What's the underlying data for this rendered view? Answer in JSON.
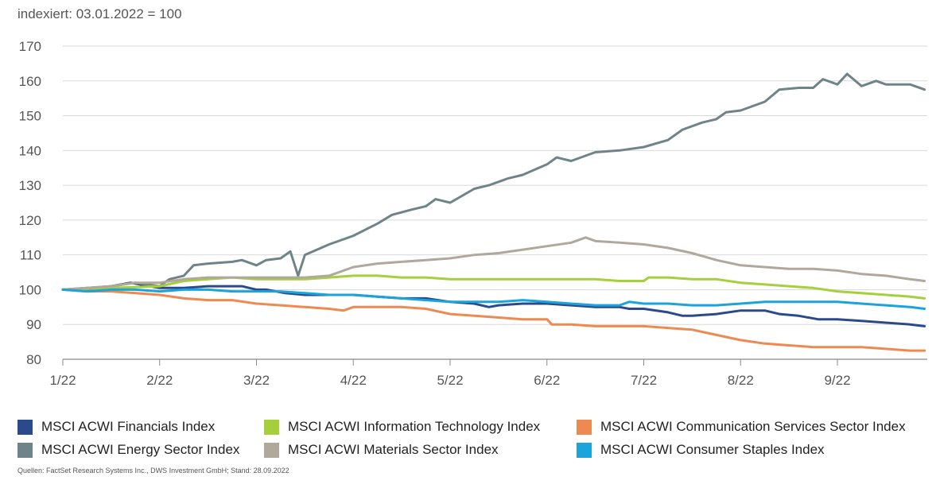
{
  "subtitle": "indexiert: 03.01.2022 = 100",
  "source": "Quellen: FactSet Research Systems Inc., DWS Investment GmbH; Stand: 28.09.2022",
  "chart_data": {
    "type": "line",
    "title": "",
    "xlabel": "",
    "ylabel": "",
    "ylim": [
      80,
      170
    ],
    "yticks": [
      80,
      90,
      100,
      110,
      120,
      130,
      140,
      150,
      160,
      170
    ],
    "xticks": [
      "1/22",
      "2/22",
      "3/22",
      "4/22",
      "5/22",
      "6/22",
      "7/22",
      "8/22",
      "9/22"
    ],
    "xrange": [
      0,
      8.9
    ],
    "grid": true,
    "legend_position": "bottom",
    "series": [
      {
        "name": "MSCI ACWI Financials Index",
        "color": "#2b4a8b",
        "points": [
          [
            0,
            100
          ],
          [
            0.3,
            100
          ],
          [
            0.5,
            101
          ],
          [
            0.7,
            102
          ],
          [
            0.9,
            101
          ],
          [
            1,
            100.5
          ],
          [
            1.25,
            100.5
          ],
          [
            1.5,
            101
          ],
          [
            1.75,
            101
          ],
          [
            1.85,
            101
          ],
          [
            2,
            100
          ],
          [
            2.1,
            100
          ],
          [
            2.3,
            99
          ],
          [
            2.5,
            98.5
          ],
          [
            2.75,
            98.5
          ],
          [
            3,
            98.5
          ],
          [
            3.25,
            98
          ],
          [
            3.5,
            97.5
          ],
          [
            3.75,
            97.5
          ],
          [
            4,
            96.5
          ],
          [
            4.25,
            96
          ],
          [
            4.4,
            95
          ],
          [
            4.5,
            95.5
          ],
          [
            4.75,
            96
          ],
          [
            5,
            96
          ],
          [
            5.25,
            95.5
          ],
          [
            5.5,
            95
          ],
          [
            5.75,
            95
          ],
          [
            5.85,
            94.5
          ],
          [
            6,
            94.5
          ],
          [
            6.25,
            93.5
          ],
          [
            6.4,
            92.5
          ],
          [
            6.5,
            92.5
          ],
          [
            6.75,
            93
          ],
          [
            7,
            94
          ],
          [
            7.25,
            94
          ],
          [
            7.4,
            93
          ],
          [
            7.6,
            92.5
          ],
          [
            7.8,
            91.5
          ],
          [
            8,
            91.5
          ],
          [
            8.25,
            91
          ],
          [
            8.5,
            90.5
          ],
          [
            8.75,
            90
          ],
          [
            8.9,
            89.5
          ]
        ]
      },
      {
        "name": "MSCI ACWI Energy Sector Index",
        "color": "#6f8489",
        "points": [
          [
            0,
            100
          ],
          [
            0.25,
            100.5
          ],
          [
            0.5,
            101
          ],
          [
            0.75,
            102
          ],
          [
            1,
            101
          ],
          [
            1.1,
            103
          ],
          [
            1.25,
            104
          ],
          [
            1.35,
            107
          ],
          [
            1.5,
            107.5
          ],
          [
            1.75,
            108
          ],
          [
            1.85,
            108.5
          ],
          [
            2,
            107
          ],
          [
            2.1,
            108.5
          ],
          [
            2.25,
            109
          ],
          [
            2.35,
            111
          ],
          [
            2.43,
            104
          ],
          [
            2.5,
            110
          ],
          [
            2.75,
            113
          ],
          [
            3,
            115.5
          ],
          [
            3.25,
            119
          ],
          [
            3.4,
            121.5
          ],
          [
            3.6,
            123
          ],
          [
            3.75,
            124
          ],
          [
            3.85,
            126
          ],
          [
            4,
            125
          ],
          [
            4.25,
            129
          ],
          [
            4.4,
            130
          ],
          [
            4.6,
            132
          ],
          [
            4.75,
            133
          ],
          [
            5,
            136
          ],
          [
            5.1,
            138
          ],
          [
            5.25,
            137
          ],
          [
            5.5,
            139.5
          ],
          [
            5.75,
            140
          ],
          [
            6,
            141
          ],
          [
            6.25,
            143
          ],
          [
            6.4,
            146
          ],
          [
            6.6,
            148
          ],
          [
            6.75,
            149
          ],
          [
            6.85,
            151
          ],
          [
            7,
            151.5
          ],
          [
            7.25,
            154
          ],
          [
            7.4,
            157.5
          ],
          [
            7.6,
            158
          ],
          [
            7.75,
            158
          ],
          [
            7.85,
            160.5
          ],
          [
            8,
            159
          ],
          [
            8.1,
            162
          ],
          [
            8.25,
            158.5
          ],
          [
            8.4,
            160
          ],
          [
            8.5,
            159
          ],
          [
            8.75,
            159
          ],
          [
            8.9,
            157.5
          ]
        ]
      },
      {
        "name": "MSCI ACWI Information Technology Index",
        "color": "#a5cf3b",
        "points": [
          [
            0,
            100
          ],
          [
            0.5,
            100.5
          ],
          [
            1,
            101
          ],
          [
            1.25,
            102.5
          ],
          [
            1.5,
            103
          ],
          [
            1.75,
            103.5
          ],
          [
            2,
            103
          ],
          [
            2.25,
            103
          ],
          [
            2.5,
            103
          ],
          [
            2.75,
            103.5
          ],
          [
            3,
            104
          ],
          [
            3.25,
            104
          ],
          [
            3.5,
            103.5
          ],
          [
            3.75,
            103.5
          ],
          [
            4,
            103
          ],
          [
            4.25,
            103
          ],
          [
            4.5,
            103
          ],
          [
            4.75,
            103
          ],
          [
            5,
            103
          ],
          [
            5.25,
            103
          ],
          [
            5.5,
            103
          ],
          [
            5.75,
            102.5
          ],
          [
            6,
            102.5
          ],
          [
            6.05,
            103.5
          ],
          [
            6.25,
            103.5
          ],
          [
            6.5,
            103
          ],
          [
            6.75,
            103
          ],
          [
            7,
            102
          ],
          [
            7.25,
            101.5
          ],
          [
            7.5,
            101
          ],
          [
            7.75,
            100.5
          ],
          [
            8,
            99.5
          ],
          [
            8.25,
            99
          ],
          [
            8.5,
            98.5
          ],
          [
            8.75,
            98
          ],
          [
            8.9,
            97.5
          ]
        ]
      },
      {
        "name": "MSCI ACWI Materials Sector Index",
        "color": "#b1a89c",
        "points": [
          [
            0,
            100
          ],
          [
            0.25,
            100.5
          ],
          [
            0.5,
            101
          ],
          [
            0.75,
            102
          ],
          [
            1,
            102
          ],
          [
            1.25,
            103
          ],
          [
            1.5,
            103.5
          ],
          [
            1.75,
            103.5
          ],
          [
            2,
            103.5
          ],
          [
            2.25,
            103.5
          ],
          [
            2.5,
            103.5
          ],
          [
            2.75,
            104
          ],
          [
            3,
            106.5
          ],
          [
            3.25,
            107.5
          ],
          [
            3.5,
            108
          ],
          [
            3.75,
            108.5
          ],
          [
            4,
            109
          ],
          [
            4.25,
            110
          ],
          [
            4.5,
            110.5
          ],
          [
            4.75,
            111.5
          ],
          [
            5,
            112.5
          ],
          [
            5.25,
            113.5
          ],
          [
            5.4,
            115
          ],
          [
            5.5,
            114
          ],
          [
            5.75,
            113.5
          ],
          [
            6,
            113
          ],
          [
            6.25,
            112
          ],
          [
            6.5,
            110.5
          ],
          [
            6.75,
            108.5
          ],
          [
            7,
            107
          ],
          [
            7.25,
            106.5
          ],
          [
            7.5,
            106
          ],
          [
            7.75,
            106
          ],
          [
            8,
            105.5
          ],
          [
            8.25,
            104.5
          ],
          [
            8.5,
            104
          ],
          [
            8.75,
            103
          ],
          [
            8.9,
            102.5
          ]
        ]
      },
      {
        "name": "MSCI ACWI Communication Services Sector Index",
        "color": "#ec8a52",
        "points": [
          [
            0,
            100
          ],
          [
            0.25,
            99.5
          ],
          [
            0.5,
            99.5
          ],
          [
            0.75,
            99
          ],
          [
            1,
            98.5
          ],
          [
            1.25,
            97.5
          ],
          [
            1.5,
            97
          ],
          [
            1.75,
            97
          ],
          [
            2,
            96
          ],
          [
            2.25,
            95.5
          ],
          [
            2.5,
            95
          ],
          [
            2.75,
            94.5
          ],
          [
            2.9,
            94
          ],
          [
            3,
            95
          ],
          [
            3.25,
            95
          ],
          [
            3.5,
            95
          ],
          [
            3.75,
            94.5
          ],
          [
            4,
            93
          ],
          [
            4.25,
            92.5
          ],
          [
            4.5,
            92
          ],
          [
            4.75,
            91.5
          ],
          [
            5,
            91.5
          ],
          [
            5.05,
            90
          ],
          [
            5.25,
            90
          ],
          [
            5.5,
            89.5
          ],
          [
            5.75,
            89.5
          ],
          [
            6,
            89.5
          ],
          [
            6.25,
            89
          ],
          [
            6.5,
            88.5
          ],
          [
            6.75,
            87
          ],
          [
            7,
            85.5
          ],
          [
            7.25,
            84.5
          ],
          [
            7.5,
            84
          ],
          [
            7.75,
            83.5
          ],
          [
            8,
            83.5
          ],
          [
            8.25,
            83.5
          ],
          [
            8.5,
            83
          ],
          [
            8.75,
            82.5
          ],
          [
            8.9,
            82.5
          ]
        ]
      },
      {
        "name": "MSCI ACWI Consumer Staples Index",
        "color": "#1aa4dc",
        "points": [
          [
            0,
            100
          ],
          [
            0.25,
            99.5
          ],
          [
            0.5,
            100
          ],
          [
            0.75,
            100
          ],
          [
            1,
            99.5
          ],
          [
            1.25,
            100
          ],
          [
            1.5,
            100
          ],
          [
            1.75,
            99.5
          ],
          [
            2,
            99.5
          ],
          [
            2.25,
            99.5
          ],
          [
            2.5,
            99
          ],
          [
            2.75,
            98.5
          ],
          [
            3,
            98.5
          ],
          [
            3.25,
            98
          ],
          [
            3.5,
            97.5
          ],
          [
            3.75,
            97
          ],
          [
            4,
            96.5
          ],
          [
            4.25,
            96.5
          ],
          [
            4.5,
            96.5
          ],
          [
            4.75,
            97
          ],
          [
            5,
            96.5
          ],
          [
            5.25,
            96
          ],
          [
            5.5,
            95.5
          ],
          [
            5.75,
            95.5
          ],
          [
            5.85,
            96.5
          ],
          [
            6,
            96
          ],
          [
            6.25,
            96
          ],
          [
            6.5,
            95.5
          ],
          [
            6.75,
            95.5
          ],
          [
            7,
            96
          ],
          [
            7.25,
            96.5
          ],
          [
            7.5,
            96.5
          ],
          [
            7.75,
            96.5
          ],
          [
            8,
            96.5
          ],
          [
            8.25,
            96
          ],
          [
            8.5,
            95.5
          ],
          [
            8.75,
            95
          ],
          [
            8.9,
            94.5
          ]
        ]
      }
    ]
  }
}
